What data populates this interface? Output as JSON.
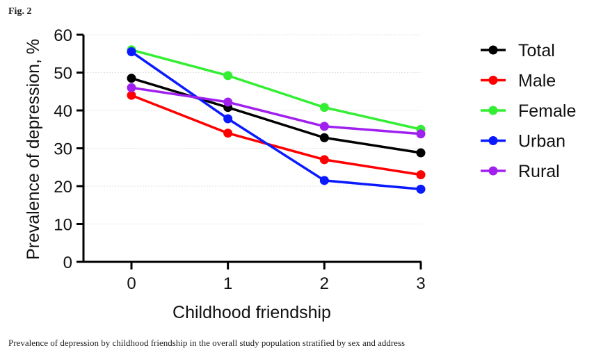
{
  "figure": {
    "label": "Fig. 2",
    "caption": "Prevalence of depression by childhood friendship in the overall study population stratified by sex and address"
  },
  "chart_data": {
    "type": "line",
    "title": "",
    "xlabel": "Childhood friendship",
    "ylabel": "Prevalence of depression, %",
    "x": [
      0,
      1,
      2,
      3
    ],
    "xticks": [
      "0",
      "1",
      "2",
      "3"
    ],
    "yticks": [
      "0",
      "10",
      "20",
      "30",
      "40",
      "50",
      "60"
    ],
    "ylim": [
      0,
      60
    ],
    "grid": true,
    "legend_position": "right",
    "series": [
      {
        "name": "Total",
        "color": "#000000",
        "values": [
          48.5,
          40.8,
          32.8,
          28.8
        ]
      },
      {
        "name": "Male",
        "color": "#ff0000",
        "values": [
          44.0,
          34.0,
          27.0,
          23.0
        ]
      },
      {
        "name": "Female",
        "color": "#33ee33",
        "values": [
          56.0,
          49.2,
          40.8,
          35.0
        ]
      },
      {
        "name": "Urban",
        "color": "#0a1aff",
        "values": [
          55.5,
          37.8,
          21.5,
          19.2
        ]
      },
      {
        "name": "Rural",
        "color": "#a020f0",
        "values": [
          46.0,
          42.2,
          35.8,
          33.8
        ]
      }
    ]
  }
}
